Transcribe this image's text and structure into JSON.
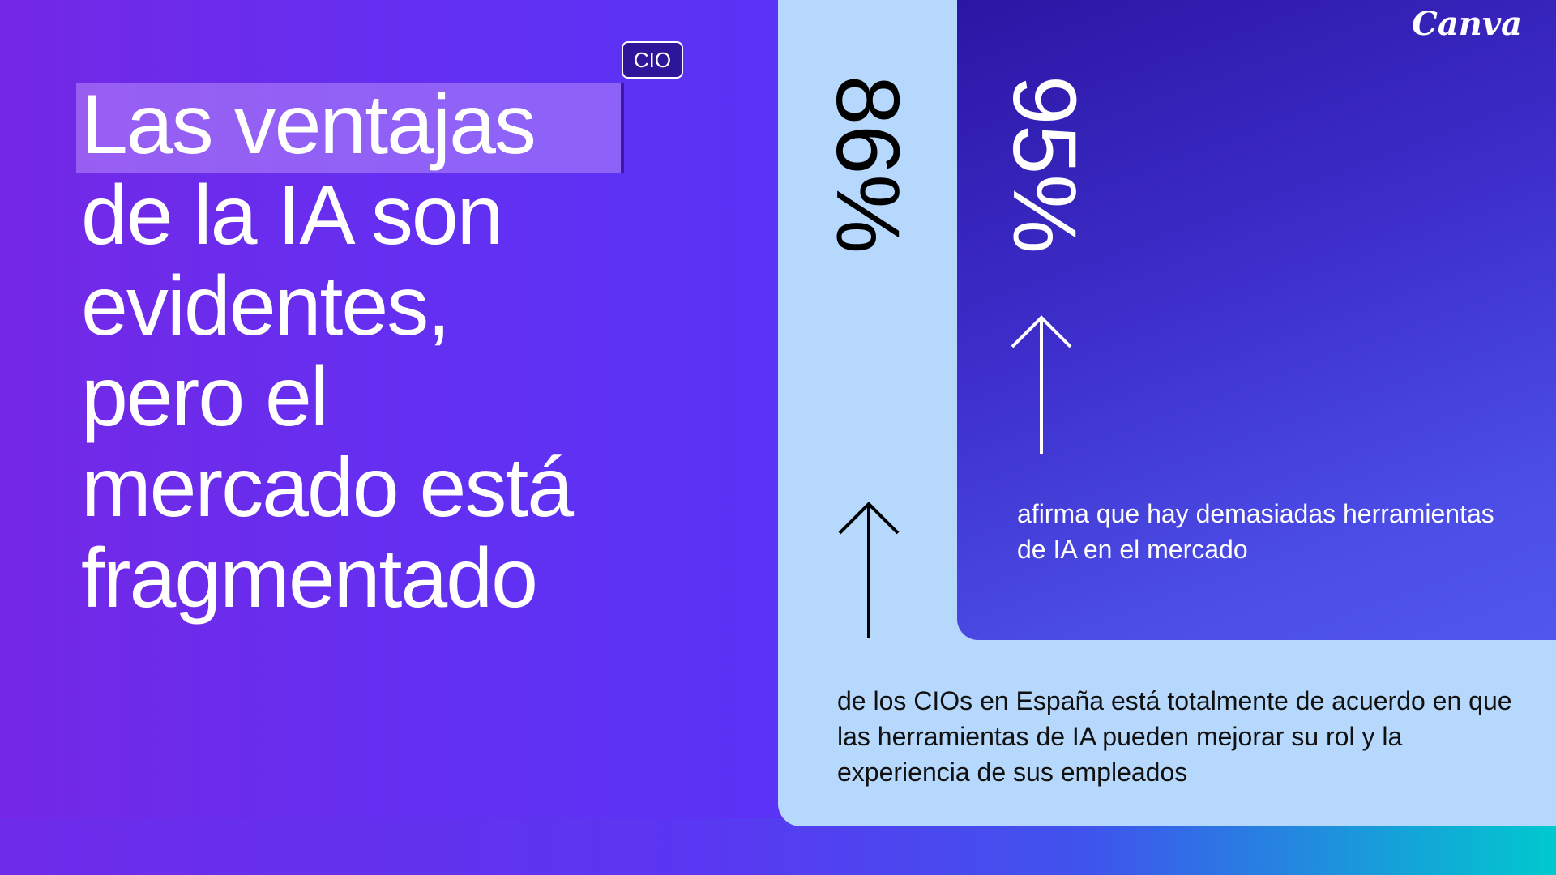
{
  "brand": {
    "logo_text": "Canva"
  },
  "tag": {
    "label": "CIO"
  },
  "headline": {
    "lines": [
      "Las ventajas",
      "de la IA son",
      "evidentes,",
      "pero el",
      "mercado está",
      "fragmentado"
    ]
  },
  "stats": [
    {
      "value": "86%",
      "description": "de los CIOs en España está totalmente de acuerdo en que las herramientas de IA pueden mejorar su rol y la experiencia de sus empleados"
    },
    {
      "value": "95%",
      "description": "afirma que hay demasiadas herramientas de IA en el mercado"
    }
  ],
  "icons": [
    "arrow-up-icon",
    "arrow-up-icon"
  ],
  "colors": {
    "purple": "#6a2cf0",
    "light_blue": "#b7d8fd",
    "dark_indigo": "#2b16a4",
    "teal": "#00c9cf"
  }
}
